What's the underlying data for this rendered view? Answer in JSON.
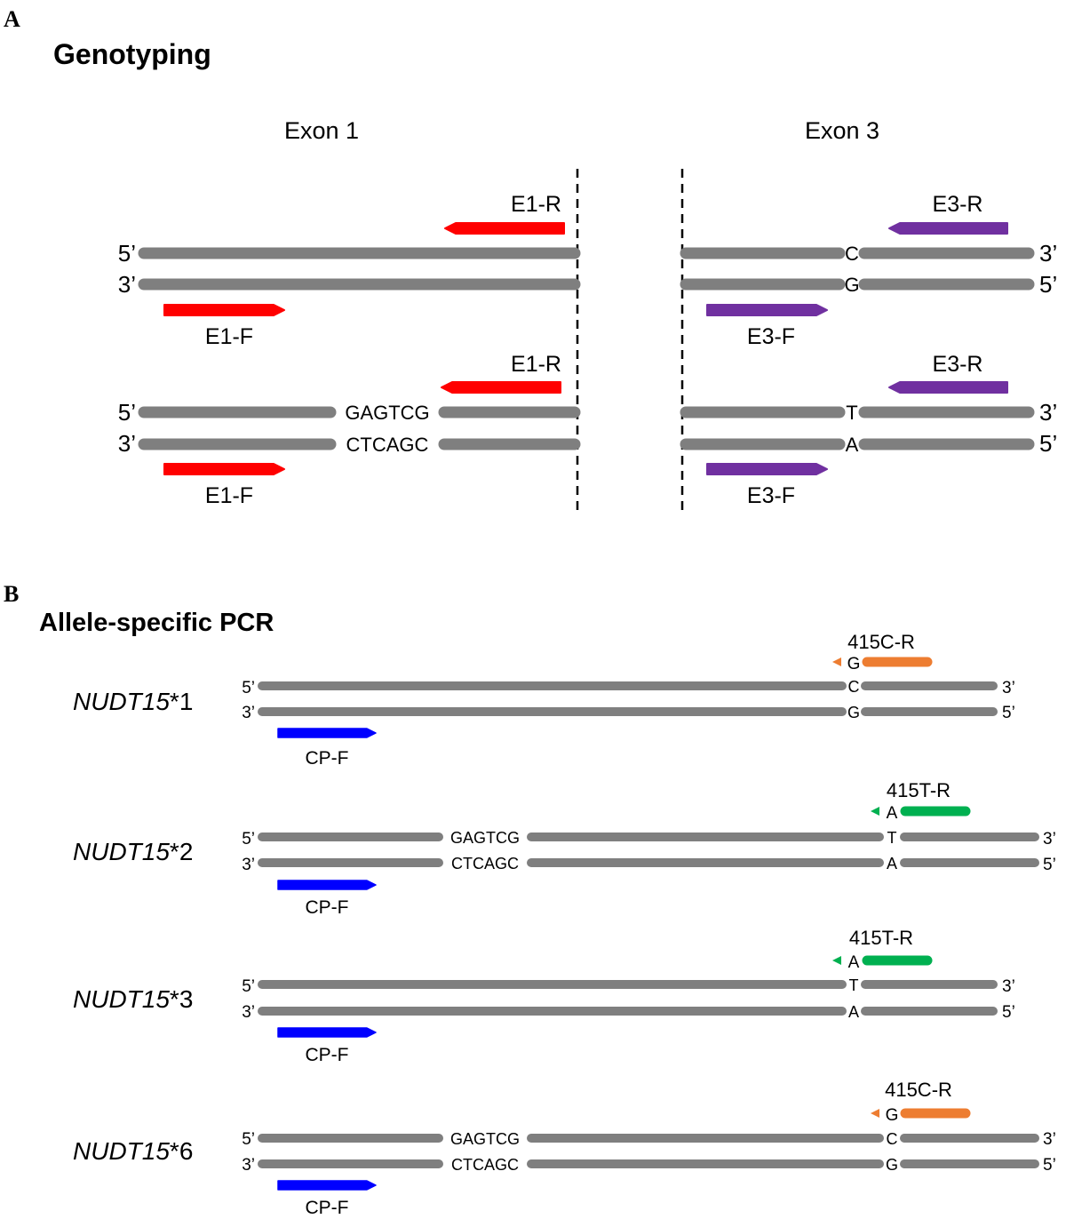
{
  "panel_a": {
    "letter": "A",
    "title": "Genotyping",
    "exon1_label": "Exon 1",
    "exon3_label": "Exon 3",
    "end_5": "5’",
    "end_3": "3’",
    "e1_f": "E1-F",
    "e1_r": "E1-R",
    "e3_f": "E3-F",
    "e3_r": "E3-R",
    "row1_top_base": "C",
    "row1_bot_base": "G",
    "row2_top_insert": "GAGTCG",
    "row2_bot_insert": "CTCAGC",
    "row2_top_base": "T",
    "row2_bot_base": "A"
  },
  "panel_b": {
    "letter": "B",
    "title": "Allele-specific PCR",
    "end_5": "5’",
    "end_3": "3’",
    "cp_f": "CP-F",
    "alleles": [
      {
        "gene": "NUDT15",
        "suffix": "*1",
        "insert_top": "",
        "insert_bot": "",
        "top_base": "C",
        "bot_base": "G",
        "primer": "415C-R",
        "primer_base": "G"
      },
      {
        "gene": "NUDT15",
        "suffix": "*2",
        "insert_top": "GAGTCG",
        "insert_bot": "CTCAGC",
        "top_base": "T",
        "bot_base": "A",
        "primer": "415T-R",
        "primer_base": "A"
      },
      {
        "gene": "NUDT15",
        "suffix": "*3",
        "insert_top": "",
        "insert_bot": "",
        "top_base": "T",
        "bot_base": "A",
        "primer": "415T-R",
        "primer_base": "A"
      },
      {
        "gene": "NUDT15",
        "suffix": "*6",
        "insert_top": "GAGTCG",
        "insert_bot": "CTCAGC",
        "top_base": "C",
        "bot_base": "G",
        "primer": "415C-R",
        "primer_base": "G"
      }
    ]
  },
  "colors": {
    "strand": "#7f7f7f",
    "e1_primer": "#ff0000",
    "e3_primer": "#7030a0",
    "cp_primer": "#0000ff",
    "c_primer": "#ed7d31",
    "t_primer": "#00b050"
  }
}
